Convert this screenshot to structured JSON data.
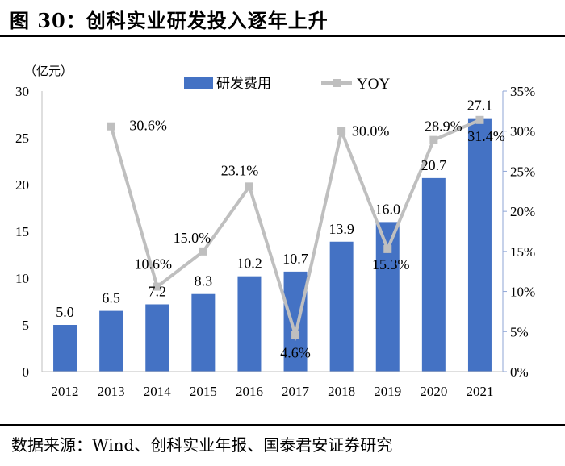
{
  "figure": {
    "title": "图 30：创科实业研发投入逐年上升",
    "source": "数据来源：Wind、创科实业年报、国泰君安证券研究"
  },
  "chart_data": {
    "type": "bar",
    "categories": [
      "2012",
      "2013",
      "2014",
      "2015",
      "2016",
      "2017",
      "2018",
      "2019",
      "2020",
      "2021"
    ],
    "series": [
      {
        "name": "研发费用",
        "type": "bar",
        "axis": "left",
        "values": [
          5.0,
          6.5,
          7.2,
          8.3,
          10.2,
          10.7,
          13.9,
          16.0,
          20.7,
          27.1
        ],
        "labels": [
          "5.0",
          "6.5",
          "7.2",
          "8.3",
          "10.2",
          "10.7",
          "13.9",
          "16.0",
          "20.7",
          "27.1"
        ]
      },
      {
        "name": "YOY",
        "type": "line",
        "axis": "right",
        "values": [
          null,
          30.6,
          10.6,
          15.0,
          23.1,
          4.6,
          30.0,
          15.3,
          28.9,
          31.4
        ],
        "labels": [
          "",
          "30.6%",
          "10.6%",
          "15.0%",
          "23.1%",
          "4.6%",
          "30.0%",
          "15.3%",
          "28.9%",
          "31.4%"
        ]
      }
    ],
    "y_left": {
      "unit": "（亿元）",
      "min": 0,
      "max": 30,
      "ticks": [
        "0",
        "5",
        "10",
        "15",
        "20",
        "25",
        "30"
      ]
    },
    "y_right": {
      "min": 0,
      "max": 35,
      "ticks": [
        "0%",
        "5%",
        "10%",
        "15%",
        "20%",
        "25%",
        "30%",
        "35%"
      ]
    },
    "legend_position": "top-center",
    "grid": false,
    "colors": {
      "bar": "#4472C4",
      "line": "#BFBFBF",
      "marker": "#BFBFBF"
    }
  }
}
